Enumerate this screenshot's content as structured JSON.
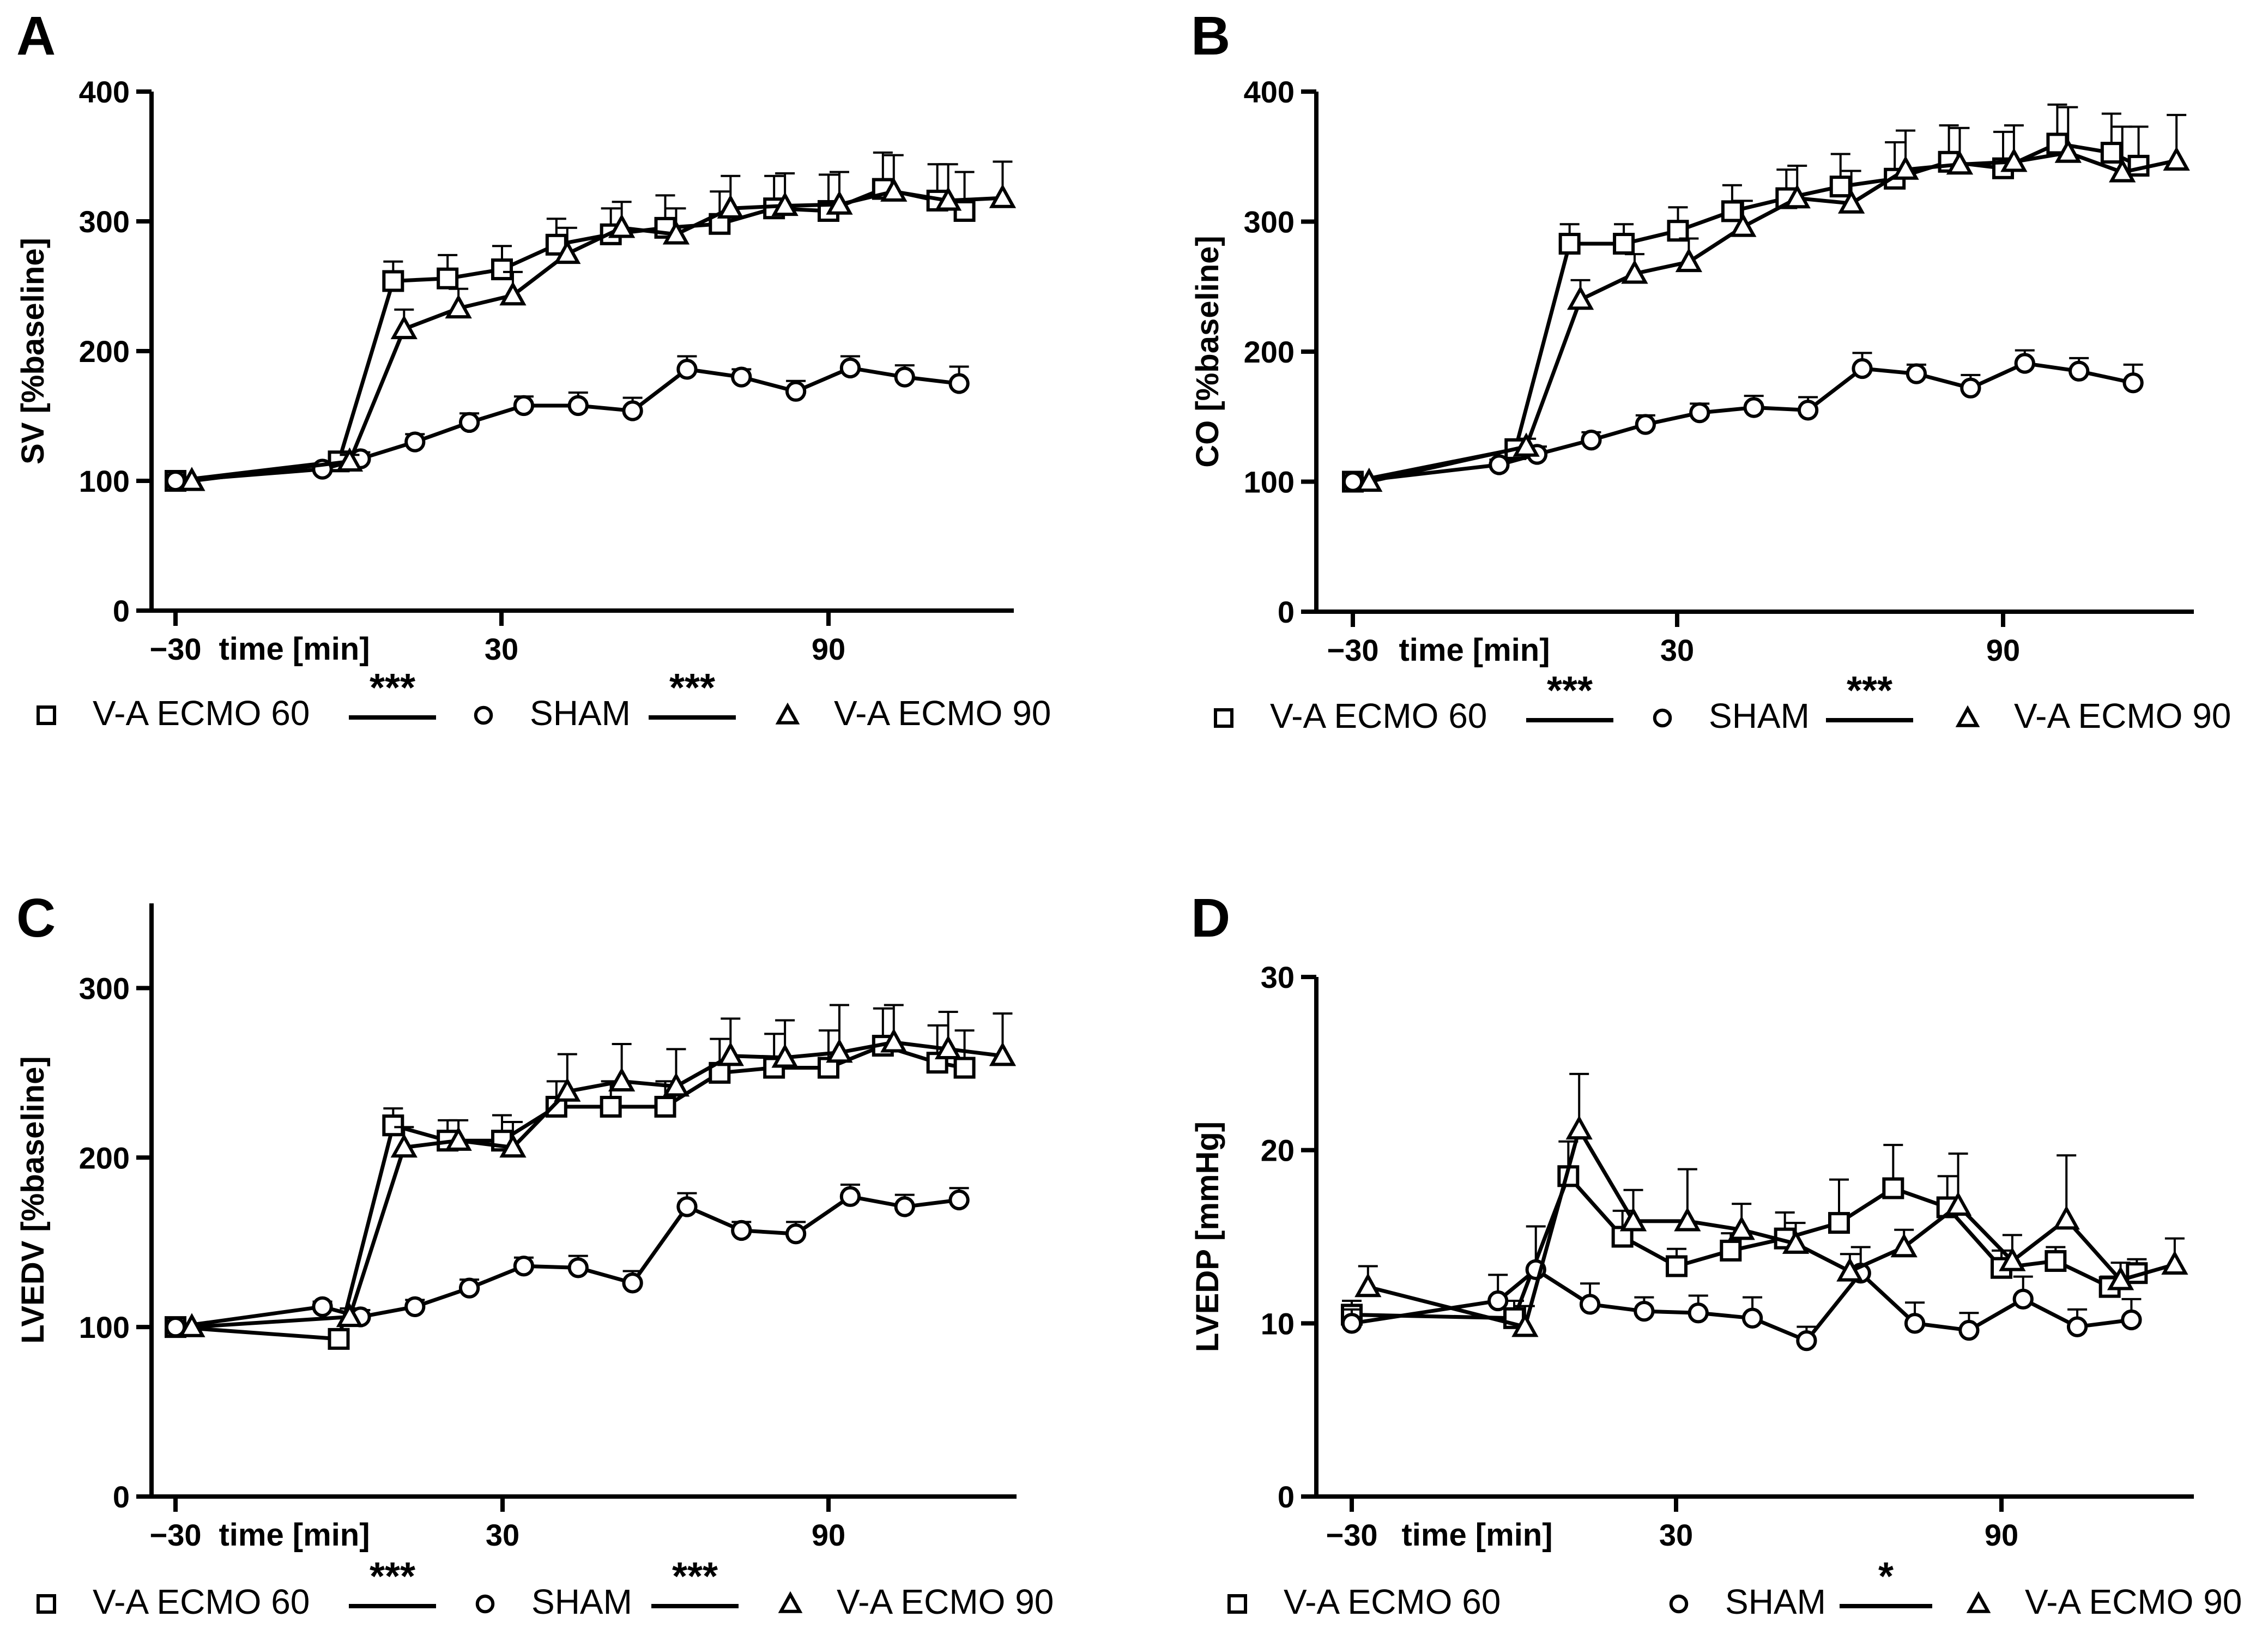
{
  "colors": {
    "ink": "#000000",
    "background": "#ffffff"
  },
  "series_markers": {
    "V-A ECMO 60": "square",
    "SHAM": "circle",
    "V-A ECMO 90": "triangle"
  },
  "chart_data": [
    {
      "panel": "A",
      "type": "line",
      "ylabel": "SV [%baseline]",
      "xlabel": "time [min]",
      "x_tick_labels": [
        "−30",
        "30",
        "90"
      ],
      "y_ticks": [
        0,
        100,
        200,
        300,
        400
      ],
      "xlim": [
        -33,
        120
      ],
      "ylim": [
        0,
        400
      ],
      "series": [
        {
          "name": "V-A ECMO 60",
          "marker": "square",
          "x": [
            -30,
            0,
            10,
            20,
            30,
            40,
            50,
            60,
            70,
            80,
            90,
            100,
            110,
            115
          ],
          "y": [
            100,
            115,
            254,
            256,
            263,
            282,
            290,
            295,
            298,
            310,
            308,
            325,
            316,
            308
          ],
          "err": [
            0,
            5,
            15,
            18,
            18,
            20,
            20,
            25,
            25,
            25,
            28,
            28,
            28,
            30
          ]
        },
        {
          "name": "SHAM",
          "marker": "circle",
          "x": [
            -30,
            -3,
            4,
            14,
            24,
            34,
            44,
            54,
            64,
            74,
            84,
            94,
            104,
            114
          ],
          "y": [
            100,
            109,
            117,
            130,
            145,
            158,
            158,
            154,
            186,
            180,
            169,
            187,
            180,
            175
          ],
          "err": [
            0,
            4,
            5,
            6,
            7,
            7,
            10,
            10,
            10,
            6,
            8,
            9,
            9,
            13
          ]
        },
        {
          "name": "V-A ECMO 90",
          "marker": "triangle",
          "x": [
            -27,
            2,
            12,
            22,
            32,
            42,
            52,
            62,
            72,
            82,
            92,
            102,
            112,
            122
          ],
          "y": [
            100,
            115,
            217,
            233,
            243,
            275,
            295,
            290,
            310,
            312,
            313,
            323,
            316,
            318
          ],
          "err": [
            0,
            5,
            15,
            15,
            18,
            20,
            20,
            20,
            25,
            25,
            25,
            28,
            28,
            28
          ]
        }
      ],
      "significance": [
        {
          "label": "***",
          "between": [
            "V-A ECMO 60",
            "SHAM"
          ]
        },
        {
          "label": "***",
          "between": [
            "SHAM",
            "V-A ECMO 90"
          ]
        }
      ]
    },
    {
      "panel": "B",
      "type": "line",
      "ylabel": "CO [%baseline]",
      "xlabel": "time [min]",
      "x_tick_labels": [
        "−30",
        "30",
        "90"
      ],
      "y_ticks": [
        0,
        100,
        200,
        300,
        400
      ],
      "xlim": [
        -33,
        120
      ],
      "ylim": [
        0,
        400
      ],
      "series": [
        {
          "name": "V-A ECMO 60",
          "marker": "square",
          "x": [
            -30,
            0,
            10,
            20,
            30,
            40,
            50,
            60,
            70,
            80,
            90,
            100,
            110,
            115
          ],
          "y": [
            100,
            125,
            283,
            283,
            293,
            308,
            318,
            327,
            333,
            346,
            341,
            360,
            353,
            343
          ],
          "err": [
            0,
            6,
            15,
            15,
            18,
            20,
            22,
            25,
            28,
            28,
            28,
            30,
            30,
            30
          ]
        },
        {
          "name": "SHAM",
          "marker": "circle",
          "x": [
            -30,
            -3,
            4,
            14,
            24,
            34,
            44,
            54,
            64,
            74,
            84,
            94,
            104,
            114
          ],
          "y": [
            100,
            113,
            121,
            132,
            144,
            153,
            157,
            155,
            187,
            183,
            172,
            191,
            185,
            176
          ],
          "err": [
            0,
            4,
            6,
            6,
            7,
            7,
            9,
            10,
            12,
            7,
            10,
            10,
            10,
            14
          ]
        },
        {
          "name": "V-A ECMO 90",
          "marker": "triangle",
          "x": [
            -27,
            2,
            12,
            22,
            32,
            42,
            52,
            62,
            72,
            82,
            92,
            102,
            112,
            122
          ],
          "y": [
            100,
            127,
            240,
            260,
            269,
            296,
            318,
            314,
            340,
            344,
            346,
            353,
            338,
            347
          ],
          "err": [
            0,
            6,
            15,
            15,
            18,
            20,
            25,
            25,
            30,
            28,
            28,
            35,
            35,
            35
          ]
        }
      ],
      "significance": [
        {
          "label": "***",
          "between": [
            "V-A ECMO 60",
            "SHAM"
          ]
        },
        {
          "label": "***",
          "between": [
            "SHAM",
            "V-A ECMO 90"
          ]
        }
      ]
    },
    {
      "panel": "C",
      "type": "line",
      "ylabel": "LVEDV [%baseline]",
      "xlabel": "time [min]",
      "x_tick_labels": [
        "−30",
        "30",
        "90"
      ],
      "y_ticks": [
        0,
        100,
        200,
        300
      ],
      "xlim": [
        -33,
        120
      ],
      "ylim": [
        0,
        350
      ],
      "series": [
        {
          "name": "V-A ECMO 60",
          "marker": "square",
          "x": [
            -30,
            0,
            10,
            20,
            30,
            40,
            50,
            60,
            70,
            80,
            90,
            100,
            110,
            115
          ],
          "y": [
            100,
            93,
            219,
            210,
            210,
            230,
            230,
            230,
            250,
            253,
            253,
            266,
            256,
            253
          ],
          "err": [
            0,
            4,
            10,
            12,
            15,
            15,
            15,
            15,
            20,
            20,
            22,
            22,
            22,
            22
          ]
        },
        {
          "name": "SHAM",
          "marker": "circle",
          "x": [
            -30,
            -3,
            4,
            14,
            24,
            34,
            44,
            54,
            64,
            74,
            84,
            94,
            104,
            114
          ],
          "y": [
            100,
            112,
            106,
            112,
            123,
            136,
            135,
            126,
            171,
            157,
            155,
            177,
            171,
            175
          ],
          "err": [
            0,
            3,
            4,
            4,
            5,
            5,
            7,
            7,
            8,
            5,
            7,
            7,
            7,
            7
          ]
        },
        {
          "name": "V-A ECMO 90",
          "marker": "triangle",
          "x": [
            -27,
            2,
            12,
            22,
            32,
            42,
            52,
            62,
            72,
            82,
            92,
            102,
            112,
            122
          ],
          "y": [
            100,
            106,
            206,
            210,
            206,
            239,
            245,
            242,
            260,
            259,
            262,
            268,
            264,
            260
          ],
          "err": [
            0,
            5,
            12,
            12,
            15,
            22,
            22,
            22,
            22,
            22,
            28,
            22,
            22,
            25
          ]
        }
      ],
      "significance": [
        {
          "label": "***",
          "between": [
            "V-A ECMO 60",
            "SHAM"
          ]
        },
        {
          "label": "***",
          "between": [
            "SHAM",
            "V-A ECMO 90"
          ]
        }
      ]
    },
    {
      "panel": "D",
      "type": "line",
      "ylabel": "LVEDP [mmHg]",
      "xlabel": "time [min]",
      "x_tick_labels": [
        "−30",
        "30",
        "90"
      ],
      "y_ticks": [
        0,
        10,
        20,
        30
      ],
      "xlim": [
        -33,
        120
      ],
      "ylim": [
        0,
        30
      ],
      "series": [
        {
          "name": "V-A ECMO 60",
          "marker": "square",
          "x": [
            -30,
            0,
            10,
            20,
            30,
            40,
            50,
            60,
            70,
            80,
            90,
            100,
            110,
            115
          ],
          "y": [
            10.5,
            10.3,
            18.5,
            15.0,
            13.3,
            14.2,
            14.9,
            15.8,
            17.8,
            16.7,
            13.2,
            13.6,
            12.1,
            12.9
          ],
          "err": [
            0.8,
            1.0,
            2.0,
            1.5,
            1.0,
            1.0,
            1.5,
            2.5,
            2.5,
            1.8,
            1.0,
            0.8,
            0.6,
            0.8
          ]
        },
        {
          "name": "SHAM",
          "marker": "circle",
          "x": [
            -30,
            -3,
            4,
            14,
            24,
            34,
            44,
            54,
            64,
            74,
            84,
            94,
            104,
            114
          ],
          "y": [
            10.0,
            11.3,
            13.1,
            11.1,
            10.7,
            10.6,
            10.3,
            9.0,
            12.9,
            10.0,
            9.6,
            11.4,
            9.8,
            10.2
          ],
          "err": [
            0.8,
            1.5,
            2.5,
            1.2,
            0.8,
            1.0,
            1.2,
            0.8,
            1.5,
            1.2,
            1.0,
            1.3,
            1.0,
            1.2
          ]
        },
        {
          "name": "V-A ECMO 90",
          "marker": "triangle",
          "x": [
            -27,
            2,
            12,
            22,
            32,
            42,
            52,
            62,
            72,
            82,
            92,
            102,
            112,
            122
          ],
          "y": [
            12.1,
            9.8,
            21.2,
            15.9,
            15.9,
            15.4,
            14.6,
            13.0,
            14.4,
            16.8,
            13.6,
            16.0,
            12.5,
            13.4
          ],
          "err": [
            1.2,
            1.2,
            3.2,
            1.8,
            3.0,
            1.5,
            1.2,
            1.0,
            1.0,
            3.0,
            1.5,
            3.7,
            1.0,
            1.5
          ]
        }
      ],
      "significance": [
        {
          "label": "*",
          "between": [
            "SHAM",
            "V-A ECMO 90"
          ]
        }
      ]
    }
  ]
}
